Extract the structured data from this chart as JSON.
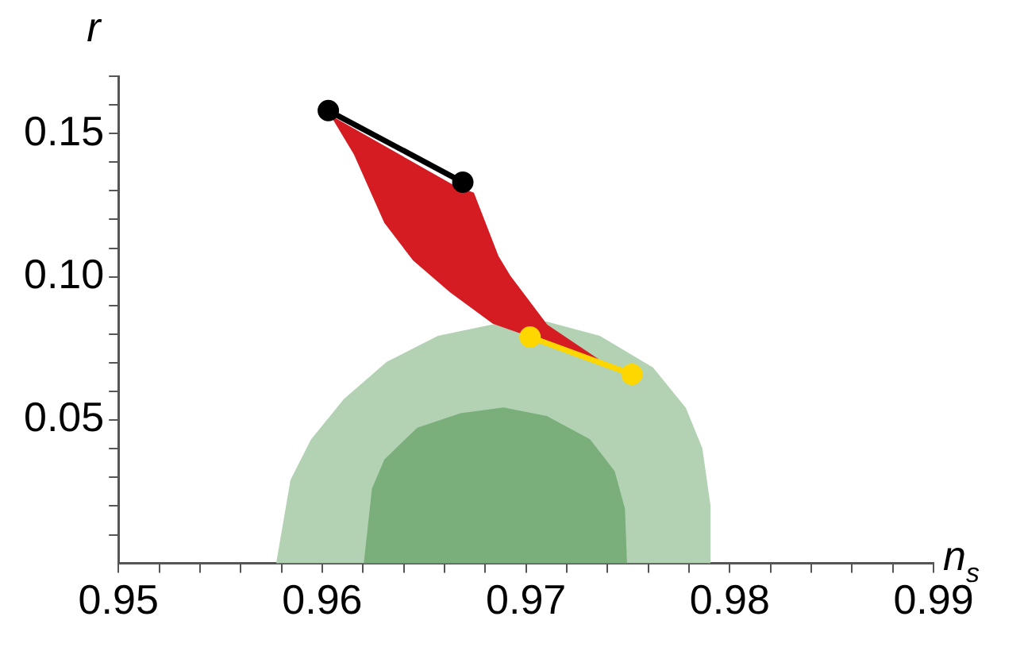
{
  "chart_data": {
    "type": "line",
    "xlabel": "n$_{s}$",
    "ylabel": "r",
    "xlim": [
      0.95,
      0.99
    ],
    "ylim": [
      0,
      0.17
    ],
    "xticks": [
      0.95,
      {
        "value": 0.952,
        "label": null
      },
      {
        "value": 0.954,
        "label": null
      },
      {
        "value": 0.956,
        "label": null
      },
      {
        "value": 0.958,
        "label": null
      },
      0.96,
      {
        "value": 0.962,
        "label": null
      },
      {
        "value": 0.964,
        "label": null
      },
      {
        "value": 0.966,
        "label": null
      },
      {
        "value": 0.968,
        "label": null
      },
      0.97,
      {
        "value": 0.972,
        "label": null
      },
      {
        "value": 0.974,
        "label": null
      },
      {
        "value": 0.976,
        "label": null
      },
      {
        "value": 0.978,
        "label": null
      },
      0.98,
      {
        "value": 0.982,
        "label": null
      },
      {
        "value": 0.984,
        "label": null
      },
      {
        "value": 0.986,
        "label": null
      },
      {
        "value": 0.988,
        "label": null
      },
      0.99
    ],
    "yticks": [
      {
        "value": 0.01,
        "label": null
      },
      {
        "value": 0.02,
        "label": null
      },
      {
        "value": 0.03,
        "label": null
      },
      {
        "value": 0.04,
        "label": null
      },
      0.05,
      {
        "value": 0.06,
        "label": null
      },
      {
        "value": 0.07,
        "label": null
      },
      {
        "value": 0.08,
        "label": null
      },
      {
        "value": 0.09,
        "label": null
      },
      {
        "value": 0.1,
        "label": "0.10"
      },
      {
        "value": 0.11,
        "label": null
      },
      {
        "value": 0.12,
        "label": null
      },
      {
        "value": 0.13,
        "label": null
      },
      {
        "value": 0.14,
        "label": null
      },
      0.15,
      {
        "value": 0.16,
        "label": null
      },
      {
        "value": 0.17,
        "label": null
      }
    ],
    "grid": false,
    "legend": false,
    "series": [
      {
        "type": "area",
        "color": "#b3d1b3",
        "x": [
          0.9578,
          0.9585,
          0.9595,
          0.9611,
          0.9632,
          0.9657,
          0.9684,
          0.971,
          0.9736,
          0.9762,
          0.9778,
          0.9786,
          0.979,
          0.979
        ],
        "values": [
          0,
          0.029,
          0.043,
          0.057,
          0.07,
          0.079,
          0.083,
          0.084,
          0.079,
          0.068,
          0.054,
          0.04,
          0.02,
          0
        ]
      },
      {
        "type": "area",
        "color": "#7aae7a",
        "x": [
          0.9621,
          0.9625,
          0.9631,
          0.9647,
          0.9668,
          0.9689,
          0.971,
          0.9731,
          0.9743,
          0.9748,
          0.9749
        ],
        "values": [
          0,
          0.026,
          0.036,
          0.047,
          0.052,
          0.054,
          0.051,
          0.043,
          0.032,
          0.019,
          0
        ]
      },
      {
        "type": "area",
        "color": "#d41c22",
        "x": [
          0.9605,
          0.9616,
          0.9631,
          0.9645,
          0.9663,
          0.9684,
          0.97,
          0.9733,
          0.971,
          0.9692,
          0.9686,
          0.9674,
          0.9667
        ],
        "values": [
          0.156,
          0.143,
          0.119,
          0.106,
          0.095,
          0.084,
          0.08,
          0.072,
          0.083,
          0.1,
          0.107,
          0.129,
          0.131
        ]
      },
      {
        "color": "#000000",
        "marker": "circle",
        "x": [
          0.9603,
          0.9669
        ],
        "values": [
          0.158,
          0.133
        ]
      },
      {
        "color": "#ffd700",
        "marker": "circle",
        "x": [
          0.9702,
          0.9752
        ],
        "values": [
          0.079,
          0.066
        ]
      }
    ]
  }
}
